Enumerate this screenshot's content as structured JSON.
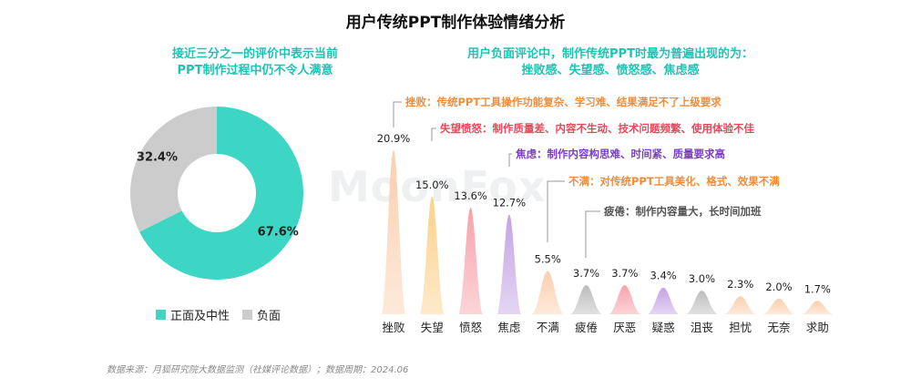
{
  "title": "用户传统PPT制作体验情绪分析",
  "left_subtitle": [
    "接近三分之一的评价中表示当前",
    "PPT制作过程中仍不令人满意"
  ],
  "right_subtitle": [
    "用户负面评论中，制作传统PPT时最为普遍出现的为：",
    "挫败感、失望感、愤怒感、焦虑感"
  ],
  "watermark": "MoonFox",
  "source": "数据来源：月狐研究院大数据监测（社媒评论数据）；数据周期：2024.06",
  "legend": {
    "positive": "正面及中性",
    "negative": "负面"
  },
  "annotations": [
    {
      "text": "挫败：传统PPT工具操作功能复杂、学习难、结果满足不了上级要求",
      "color": "#f08c3a"
    },
    {
      "text": "失望愤怒：制作质量差、内容不生动、技术问题频繁、使用体验不佳",
      "color": "#e8485a"
    },
    {
      "text": "焦虑：制作内容构思难、时间紧、质量要求高",
      "color": "#7b3fc6"
    },
    {
      "text": "不满：对传统PPT工具美化、格式、效果不满",
      "color": "#f08c3a"
    },
    {
      "text": "疲倦：制作内容量大，长时间加班",
      "color": "#555555"
    }
  ],
  "chart_data": [
    {
      "type": "pie",
      "variant": "donut",
      "slices": [
        {
          "label": "正面及中性",
          "value": 67.6,
          "display": "67.6%",
          "color": "#3dd6c4"
        },
        {
          "label": "负面",
          "value": 32.4,
          "display": "32.4%",
          "color": "#cccccc"
        }
      ]
    },
    {
      "type": "bar",
      "variant": "peak",
      "categories": [
        "挫败",
        "失望",
        "愤怒",
        "焦虑",
        "不满",
        "疲倦",
        "厌恶",
        "疑惑",
        "沮丧",
        "担忧",
        "无奈",
        "求助"
      ],
      "values": [
        20.9,
        15.0,
        13.6,
        12.7,
        5.5,
        3.7,
        3.7,
        3.4,
        3.0,
        2.3,
        2.0,
        1.7
      ],
      "labels": [
        "20.9%",
        "15.0%",
        "13.6%",
        "12.7%",
        "5.5%",
        "3.7%",
        "3.7%",
        "3.4%",
        "3.0%",
        "2.3%",
        "2.0%",
        "1.7%"
      ],
      "colors": [
        "#fbcfae",
        "#fbd18a",
        "#f7a1aa",
        "#c3a3e4",
        "#fbcfae",
        "#bdbdbd",
        "#f7a1aa",
        "#c3a3e4",
        "#bdbdbd",
        "#fbcfae",
        "#fbcfae",
        "#fbcfae"
      ],
      "ylim": [
        0,
        22
      ]
    }
  ]
}
